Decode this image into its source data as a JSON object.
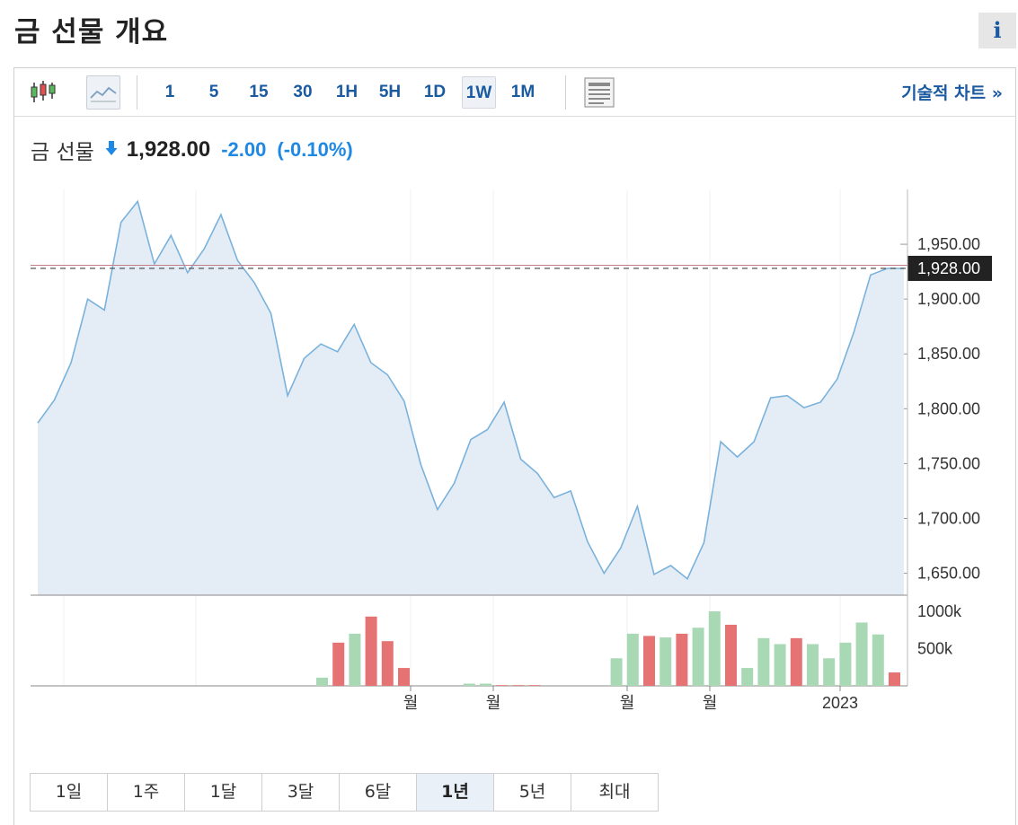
{
  "header": {
    "title": "금 선물 개요",
    "info_label": "i"
  },
  "toolbar": {
    "icons": [
      "candlestick-chart-icon",
      "area-chart-icon",
      "table-view-icon"
    ],
    "intervals": [
      "1",
      "5",
      "15",
      "30",
      "1H",
      "5H",
      "1D",
      "1W",
      "1M"
    ],
    "active_interval": "1W",
    "technical_link": "기술적 차트 »"
  },
  "quote": {
    "name": "금 선물",
    "price": "1,928.00",
    "change": "-2.00",
    "change_pct": "(-0.10%)",
    "direction": "down"
  },
  "colors": {
    "line": "#7ab2dc",
    "area": "#e4edf6",
    "up": "#a8d8b4",
    "down": "#e57373",
    "accent": "#1a5aa0",
    "change": "#1e88e5",
    "price_tag": "#222222",
    "ref_line": "#c47b8a"
  },
  "chart_data": {
    "type": "area",
    "price_series": {
      "values": [
        1787,
        1808,
        1842,
        1900,
        1890,
        1970,
        1989,
        1932,
        1958,
        1924,
        1946,
        1977,
        1935,
        1915,
        1887,
        1812,
        1846,
        1859,
        1852,
        1877,
        1842,
        1831,
        1807,
        1749,
        1708,
        1732,
        1772,
        1781,
        1806,
        1754,
        1741,
        1719,
        1725,
        1679,
        1650,
        1673,
        1711,
        1649,
        1657,
        1645,
        1678,
        1770,
        1756,
        1770,
        1810,
        1812,
        1801,
        1806,
        1827,
        1870,
        1922,
        1928,
        1928
      ],
      "y_ticks": [
        "1,650.00",
        "1,700.00",
        "1,750.00",
        "1,800.00",
        "1,850.00",
        "1,900.00",
        "1,950.00"
      ],
      "ylim": [
        1630,
        2000
      ],
      "last_price_label": "1,928.00",
      "reference_level": 1930
    },
    "volume_series": {
      "values": [
        0.11,
        0.58,
        0.7,
        0.93,
        0.6,
        0.24,
        0,
        0,
        0,
        0.03,
        0.03,
        0.01,
        0.01,
        0.01,
        0,
        0,
        0,
        0,
        0.37,
        0.7,
        0.67,
        0.65,
        0.7,
        0.78,
        1.0,
        0.82,
        0.24,
        0.64,
        0.56,
        0.64,
        0.56,
        0.37,
        0.58,
        0.85,
        0.69,
        0.18
      ],
      "direction": [
        "up",
        "down",
        "up",
        "down",
        "down",
        "down",
        "up",
        "up",
        "up",
        "up",
        "up",
        "down",
        "down",
        "down",
        "up",
        "up",
        "up",
        "up",
        "up",
        "up",
        "down",
        "up",
        "down",
        "up",
        "up",
        "down",
        "up",
        "up",
        "up",
        "down",
        "up",
        "up",
        "up",
        "up",
        "up",
        "down"
      ],
      "y_ticks": [
        "500k",
        "1000k"
      ]
    },
    "x_labels": [
      "월",
      "월",
      "월",
      "월",
      "2023"
    ]
  },
  "ranges": {
    "items": [
      "1일",
      "1주",
      "1달",
      "3달",
      "6달",
      "1년",
      "5년",
      "최대"
    ],
    "active": "1년"
  }
}
